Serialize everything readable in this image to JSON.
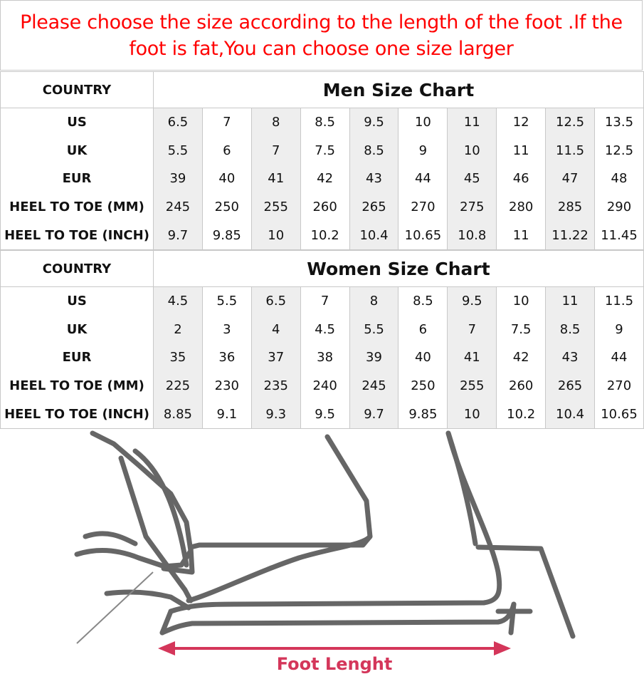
{
  "notice": "Please choose the size according to the length of the foot .If the foot is fat,You can choose one size larger",
  "men": {
    "country_label": "COUNTRY",
    "title": "Men Size Chart",
    "rows": [
      {
        "label": "US",
        "values": [
          "6.5",
          "7",
          "8",
          "8.5",
          "9.5",
          "10",
          "11",
          "12",
          "12.5",
          "13.5"
        ]
      },
      {
        "label": "UK",
        "values": [
          "5.5",
          "6",
          "7",
          "7.5",
          "8.5",
          "9",
          "10",
          "11",
          "11.5",
          "12.5"
        ]
      },
      {
        "label": "EUR",
        "values": [
          "39",
          "40",
          "41",
          "42",
          "43",
          "44",
          "45",
          "46",
          "47",
          "48"
        ]
      },
      {
        "label": "HEEL TO TOE (MM)",
        "values": [
          "245",
          "250",
          "255",
          "260",
          "265",
          "270",
          "275",
          "280",
          "285",
          "290"
        ]
      },
      {
        "label": "HEEL TO TOE (INCH)",
        "values": [
          "9.7",
          "9.85",
          "10",
          "10.2",
          "10.4",
          "10.65",
          "10.8",
          "11",
          "11.22",
          "11.45"
        ]
      }
    ]
  },
  "women": {
    "country_label": "COUNTRY",
    "title": "Women Size Chart",
    "rows": [
      {
        "label": "US",
        "values": [
          "4.5",
          "5.5",
          "6.5",
          "7",
          "8",
          "8.5",
          "9.5",
          "10",
          "11",
          "11.5"
        ]
      },
      {
        "label": "UK",
        "values": [
          "2",
          "3",
          "4",
          "4.5",
          "5.5",
          "6",
          "7",
          "7.5",
          "8.5",
          "9"
        ]
      },
      {
        "label": "EUR",
        "values": [
          "35",
          "36",
          "37",
          "38",
          "39",
          "40",
          "41",
          "42",
          "43",
          "44"
        ]
      },
      {
        "label": "HEEL TO TOE (MM)",
        "values": [
          "225",
          "230",
          "235",
          "240",
          "245",
          "250",
          "255",
          "260",
          "265",
          "270"
        ]
      },
      {
        "label": "HEEL TO TOE (INCH)",
        "values": [
          "8.85",
          "9.1",
          "9.3",
          "9.5",
          "9.7",
          "9.85",
          "10",
          "10.2",
          "10.4",
          "10.65"
        ]
      }
    ]
  },
  "illustration": {
    "caption": "Foot Lenght",
    "caption_color": "#d4365a",
    "line_color": "#666666"
  },
  "colors": {
    "notice": "#ff0000",
    "shade": "#eeeeee",
    "border": "#c8c8c8"
  }
}
